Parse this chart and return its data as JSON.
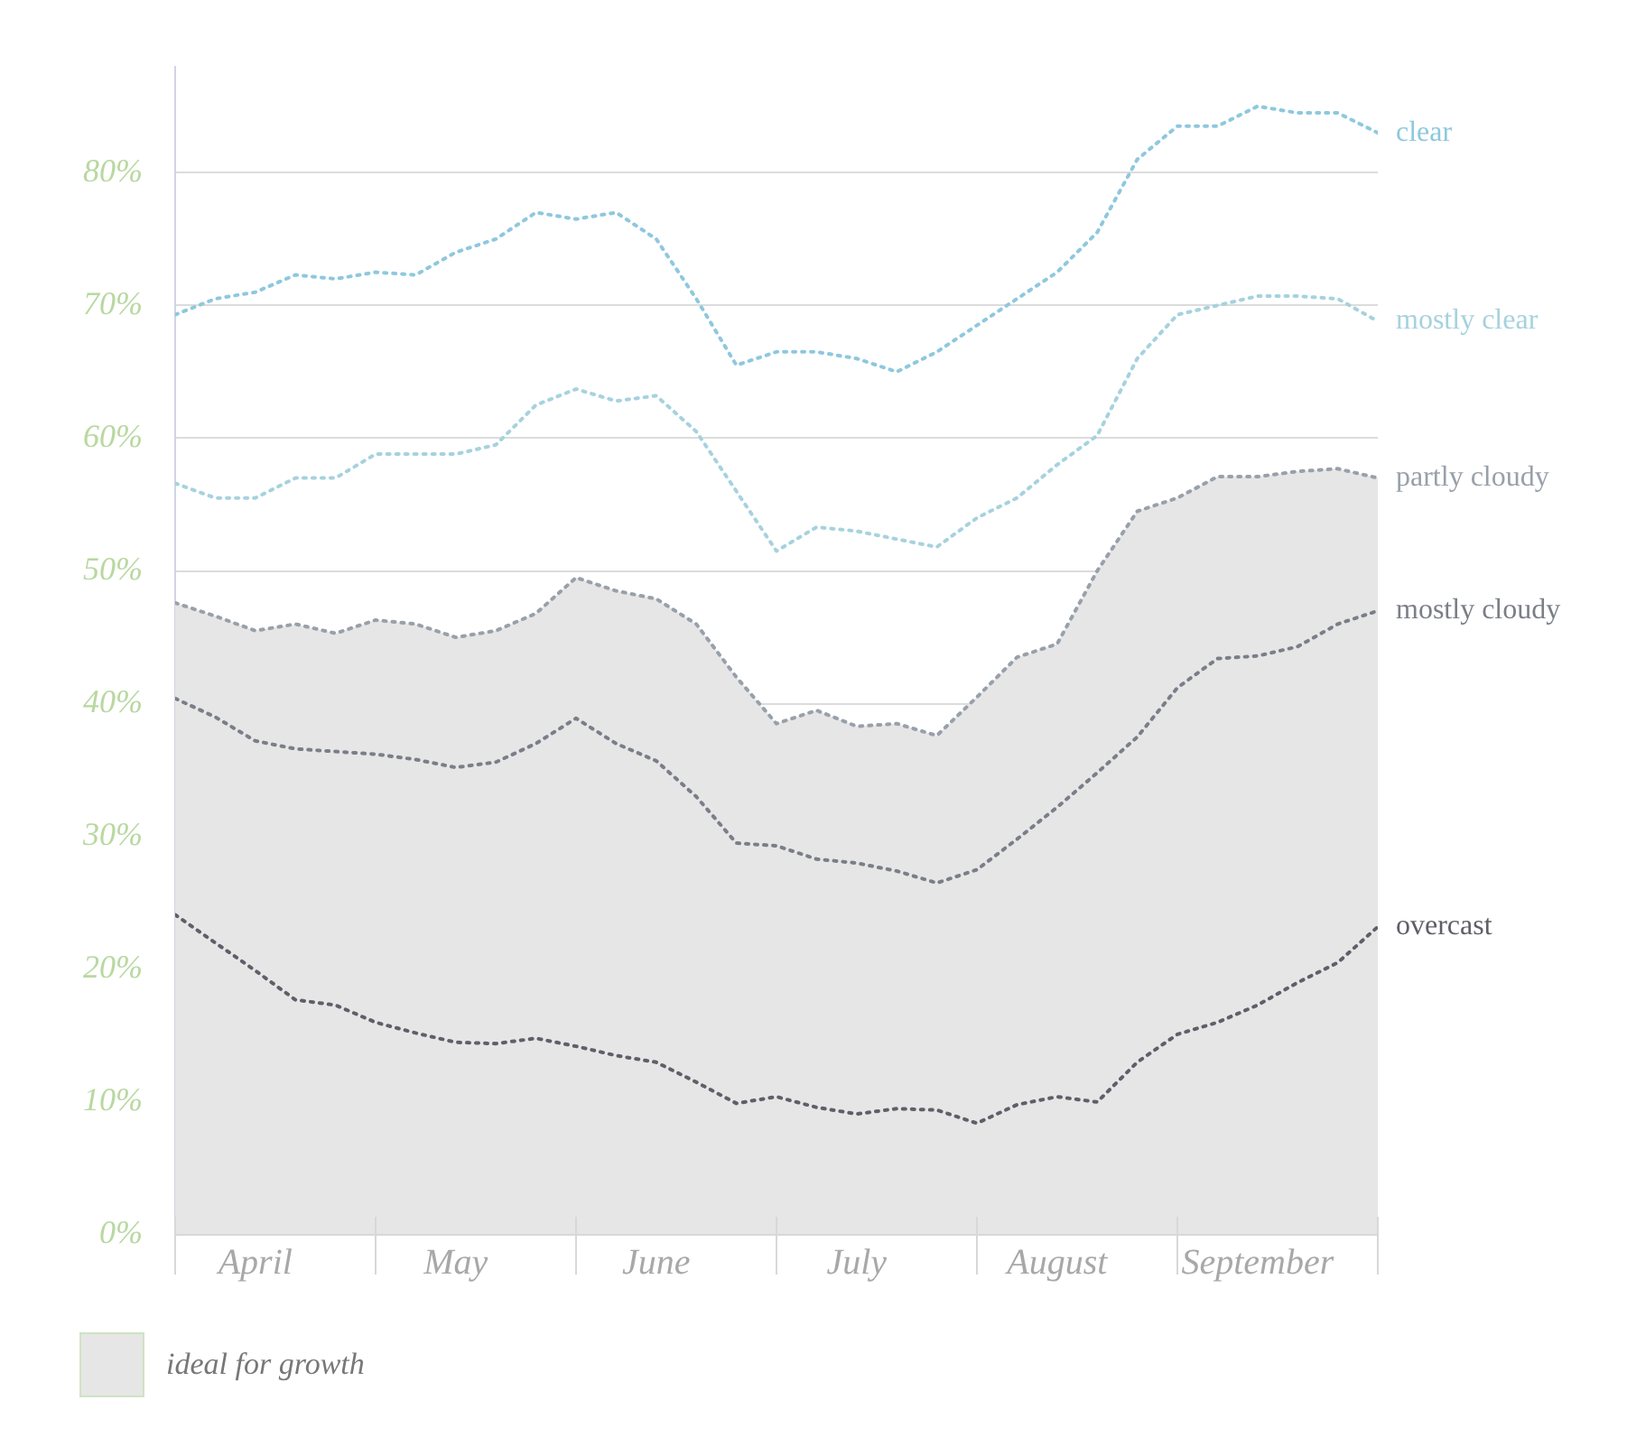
{
  "chart_data": {
    "type": "line",
    "categories": [
      null,
      null,
      "April",
      null,
      null,
      null,
      null,
      "May",
      null,
      null,
      null,
      null,
      "June",
      null,
      null,
      null,
      null,
      "July",
      null,
      null,
      null,
      null,
      "August",
      null,
      null,
      null,
      null,
      "September",
      null,
      null,
      null
    ],
    "ylim": [
      0,
      88
    ],
    "yticks": [
      {
        "value": 0,
        "label": "0%"
      },
      {
        "value": 10,
        "label": "10%"
      },
      {
        "value": 20,
        "label": "20%"
      },
      {
        "value": 30,
        "label": "30%"
      },
      {
        "value": 40,
        "label": "40%"
      },
      {
        "value": 50,
        "label": "50%"
      },
      {
        "value": 60,
        "label": "60%"
      },
      {
        "value": 70,
        "label": "70%"
      },
      {
        "value": 80,
        "label": "80%"
      }
    ],
    "grid": "y",
    "marker": "none",
    "line_style": "dotted",
    "annotations": [
      "ideal for growth"
    ],
    "series": [
      {
        "name": "clear",
        "color": "#8ec8de",
        "values": [
          69.3,
          70.5,
          71,
          72.3,
          72,
          72.5,
          72.3,
          74,
          75,
          77,
          76.5,
          77,
          75,
          70.5,
          65.5,
          66.5,
          66.5,
          66,
          65,
          66.5,
          68.5,
          70.5,
          72.5,
          75.5,
          81,
          83.5,
          83.5,
          85,
          84.5,
          84.5,
          83
        ]
      },
      {
        "name": "mostly clear",
        "color": "#a6d2de",
        "values": [
          56.6,
          55.5,
          55.5,
          57,
          57,
          58.8,
          58.8,
          58.8,
          59.5,
          62.5,
          63.7,
          62.8,
          63.2,
          60.5,
          56,
          51.5,
          53.3,
          53,
          52.4,
          51.8,
          54,
          55.5,
          58,
          60.2,
          66,
          69.3,
          70,
          70.7,
          70.7,
          70.5,
          68.8
        ]
      },
      {
        "name": "partly cloudy",
        "type": "area",
        "color": "#98a0aa",
        "values": [
          47.6,
          46.6,
          45.5,
          46,
          45.3,
          46.3,
          46,
          45,
          45.5,
          46.8,
          49.5,
          48.5,
          47.9,
          46,
          42,
          38.5,
          39.5,
          38.3,
          38.5,
          37.6,
          40.5,
          43.5,
          44.5,
          50,
          54.5,
          55.5,
          57.1,
          57.1,
          57.5,
          57.7,
          57
        ]
      },
      {
        "name": "mostly cloudy",
        "color": "#7a7e88",
        "values": [
          40.4,
          39,
          37.2,
          36.6,
          36.4,
          36.2,
          35.8,
          35.2,
          35.6,
          37,
          38.9,
          37,
          35.7,
          33,
          29.5,
          29.3,
          28.3,
          28,
          27.4,
          26.5,
          27.5,
          29.8,
          32.2,
          34.8,
          37.5,
          41.2,
          43.4,
          43.6,
          44.3,
          46,
          47
        ]
      },
      {
        "name": "overcast",
        "color": "#5e5f68",
        "values": [
          24.1,
          22,
          19.9,
          17.7,
          17.3,
          16,
          15.2,
          14.5,
          14.4,
          14.8,
          14.2,
          13.5,
          13,
          11.5,
          9.9,
          10.4,
          9.6,
          9.1,
          9.5,
          9.4,
          8.4,
          9.8,
          10.4,
          10,
          13,
          15.1,
          16,
          17.3,
          19,
          20.5,
          23.2
        ]
      }
    ]
  }
}
